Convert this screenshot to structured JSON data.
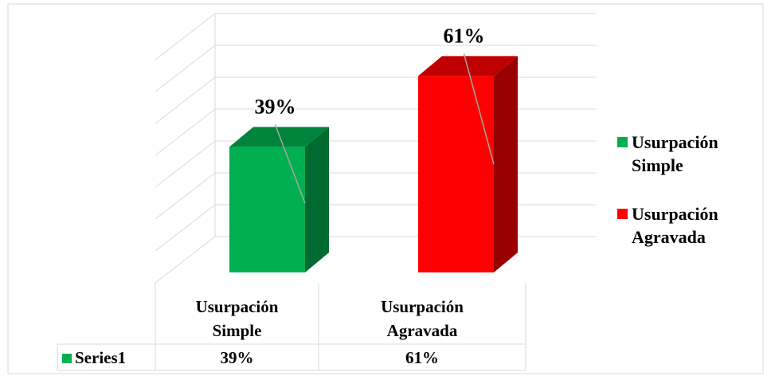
{
  "chart_data": {
    "type": "bar3d",
    "categories": [
      "Usurpación Simple",
      "Usurpación Agravada"
    ],
    "series": [
      {
        "name": "Series1",
        "values": [
          39,
          61
        ],
        "value_labels": [
          "39%",
          "61%"
        ],
        "colors": [
          "#00b050",
          "#ff0000"
        ]
      }
    ],
    "ylim": [
      0,
      70
    ],
    "yticks": [
      0,
      10,
      20,
      30,
      40,
      50,
      60,
      70
    ],
    "grid": true,
    "legend": "right",
    "data_table": true
  }
}
